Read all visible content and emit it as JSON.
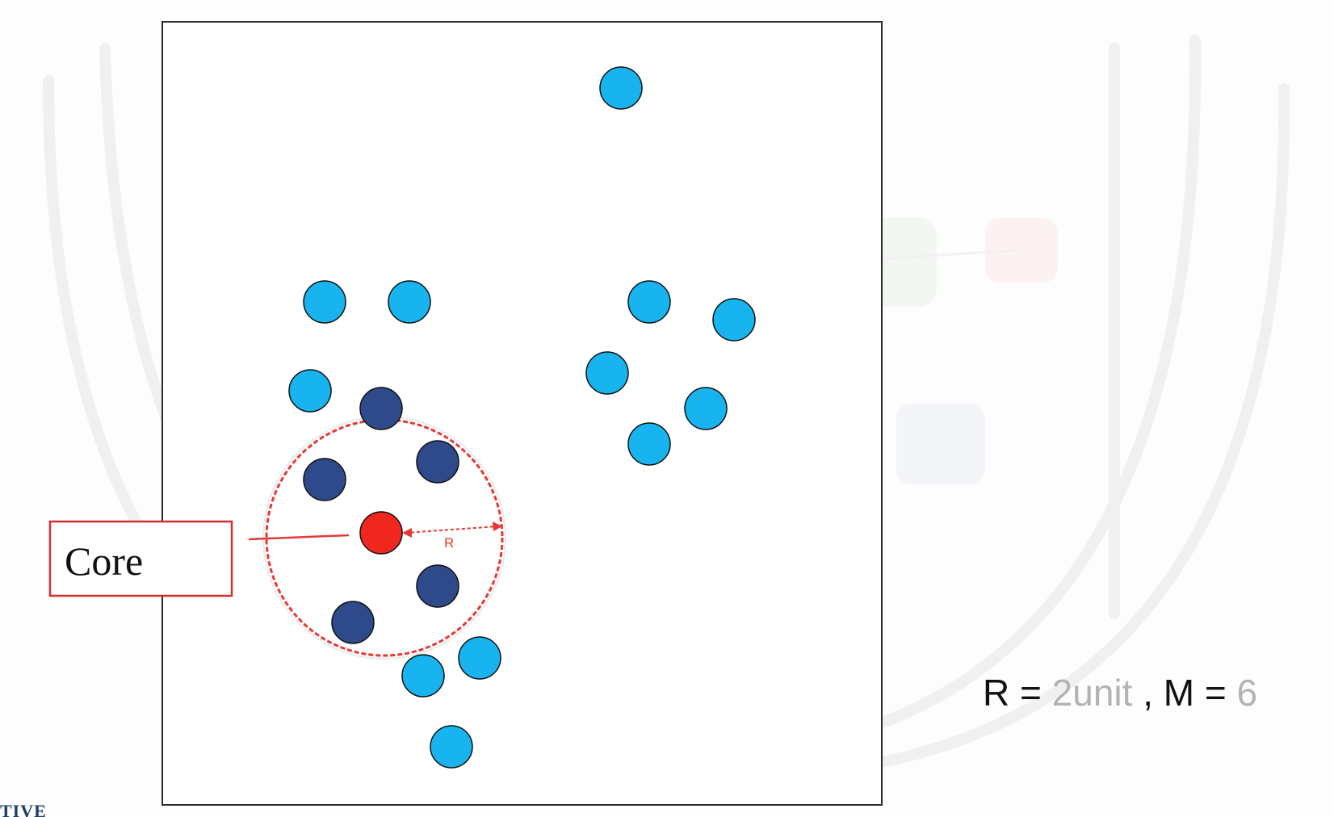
{
  "diagram": {
    "core_label": "Core",
    "radius_label": "R",
    "points": [
      {
        "kind": "point",
        "col": 1
      },
      {
        "kind": "point",
        "col": 1
      },
      {
        "kind": "point",
        "col": 1
      },
      {
        "kind": "point",
        "col": 1
      },
      {
        "kind": "point",
        "col": 1
      },
      {
        "kind": "point",
        "col": 1
      },
      {
        "kind": "point",
        "col": 1
      },
      {
        "kind": "point",
        "col": 1
      },
      {
        "kind": "point",
        "col": 1
      },
      {
        "kind": "point",
        "col": 1
      },
      {
        "kind": "point",
        "col": 1
      },
      {
        "kind": "point",
        "col": 1
      },
      {
        "kind": "point",
        "col": 1
      }
    ],
    "neighbors_count": 6,
    "colors": {
      "point": "#18b4ef",
      "neighbor": "#2e4a8a",
      "core": "#f0271e",
      "circle": "#e53935",
      "outline": "#111111"
    }
  },
  "params": {
    "r_name": "R",
    "equals": "=",
    "r_value": "2unit",
    "separator": ",",
    "m_name": "M",
    "m_value": "6"
  },
  "brand_fragment": "TIVE"
}
